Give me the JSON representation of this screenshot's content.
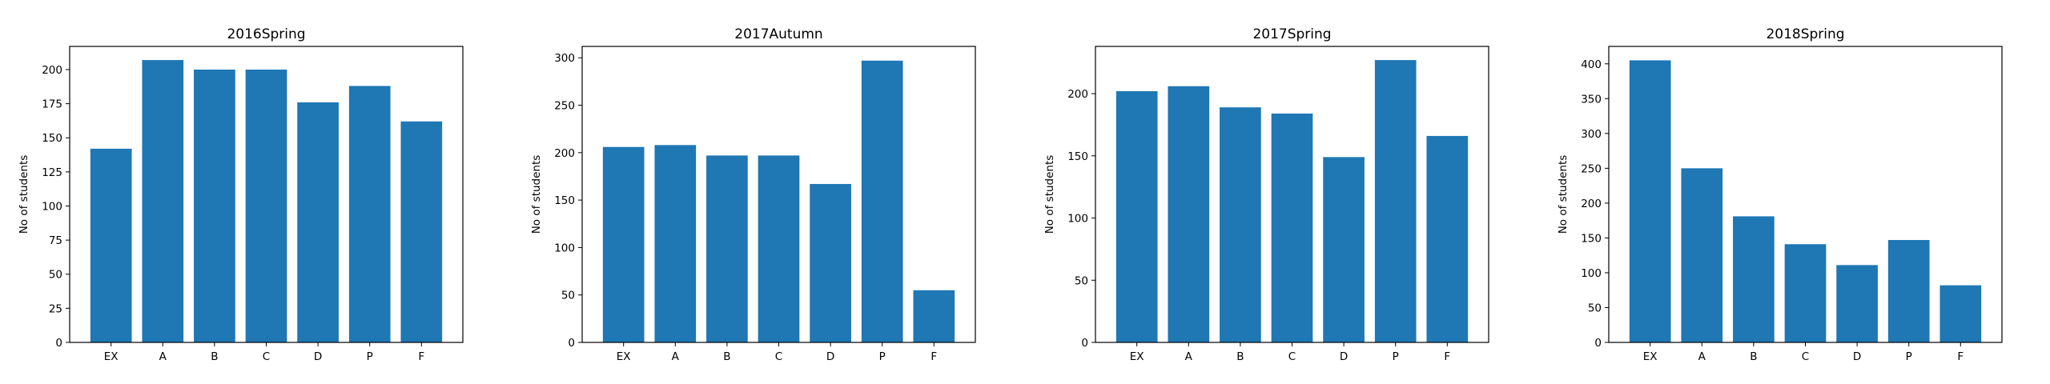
{
  "colors": {
    "bar": "#1f77b4",
    "axis": "#000000",
    "background": "#ffffff"
  },
  "chart_data": [
    {
      "type": "bar",
      "title": "2016Spring",
      "xlabel": "",
      "ylabel": "No of students",
      "categories": [
        "EX",
        "A",
        "B",
        "C",
        "D",
        "P",
        "F"
      ],
      "values": [
        142,
        207,
        200,
        200,
        176,
        188,
        162
      ],
      "ylim": [
        0,
        217
      ],
      "yticks": [
        0,
        25,
        50,
        75,
        100,
        125,
        150,
        175,
        200
      ],
      "grid": false
    },
    {
      "type": "bar",
      "title": "2017Autumn",
      "xlabel": "",
      "ylabel": "No of students",
      "categories": [
        "EX",
        "A",
        "B",
        "C",
        "D",
        "P",
        "F"
      ],
      "values": [
        206,
        208,
        197,
        197,
        167,
        297,
        55
      ],
      "ylim": [
        0,
        312
      ],
      "yticks": [
        0,
        50,
        100,
        150,
        200,
        250,
        300
      ],
      "grid": false
    },
    {
      "type": "bar",
      "title": "2017Spring",
      "xlabel": "",
      "ylabel": "No of students",
      "categories": [
        "EX",
        "A",
        "B",
        "C",
        "D",
        "P",
        "F"
      ],
      "values": [
        202,
        206,
        189,
        184,
        149,
        227,
        166
      ],
      "ylim": [
        0,
        238
      ],
      "yticks": [
        0,
        50,
        100,
        150,
        200
      ],
      "grid": false
    },
    {
      "type": "bar",
      "title": "2018Spring",
      "xlabel": "",
      "ylabel": "No of students",
      "categories": [
        "EX",
        "A",
        "B",
        "C",
        "D",
        "P",
        "F"
      ],
      "values": [
        405,
        250,
        181,
        141,
        111,
        147,
        82
      ],
      "ylim": [
        0,
        425
      ],
      "yticks": [
        0,
        50,
        100,
        150,
        200,
        250,
        300,
        350,
        400
      ],
      "grid": false
    }
  ]
}
